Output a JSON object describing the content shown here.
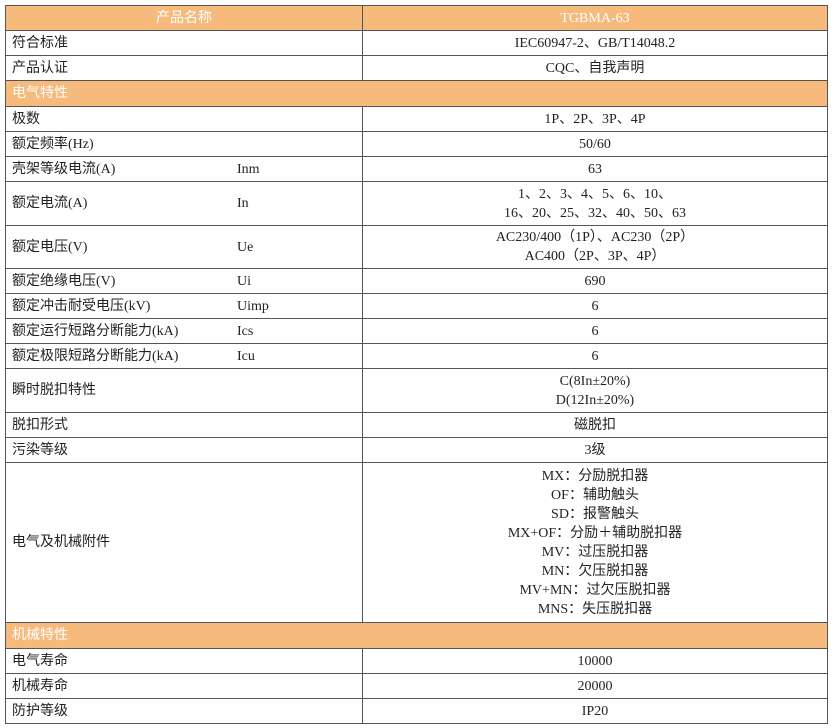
{
  "header": {
    "name_label": "产品名称",
    "model": "TGBMA-63"
  },
  "colors": {
    "section_bg": "#F5BA7C"
  },
  "rows_top": [
    {
      "label": "符合标准",
      "value": [
        "IEC60947-2、GB/T14048.2"
      ]
    },
    {
      "label": "产品认证",
      "value": [
        "CQC、自我声明"
      ]
    }
  ],
  "section_electrical": "电气特性",
  "rows_elec": [
    {
      "label": "极数",
      "symbol": "",
      "value": [
        "1P、2P、3P、4P"
      ]
    },
    {
      "label": "额定频率(Hz)",
      "symbol": "",
      "value": [
        "50/60"
      ]
    },
    {
      "label": "壳架等级电流(A)",
      "symbol": "Inm",
      "value": [
        "63"
      ]
    },
    {
      "label": "额定电流(A)",
      "symbol": "In",
      "value": [
        "1、2、3、4、5、6、10、",
        "16、20、25、32、40、50、63"
      ]
    },
    {
      "label": "额定电压(V)",
      "symbol": "Ue",
      "value": [
        "AC230/400（1P）、AC230（2P）",
        "AC400（2P、3P、4P）"
      ]
    },
    {
      "label": "额定绝缘电压(V)",
      "symbol": "Ui",
      "value": [
        "690"
      ]
    },
    {
      "label": "额定冲击耐受电压(kV)",
      "symbol": "Uimp",
      "value": [
        "6"
      ]
    },
    {
      "label": "额定运行短路分断能力(kA)",
      "symbol": "Ics",
      "value": [
        "6"
      ]
    },
    {
      "label": "额定极限短路分断能力(kA)",
      "symbol": "Icu",
      "value": [
        "6"
      ]
    },
    {
      "label": "瞬时脱扣特性",
      "symbol": "",
      "value": [
        "C(8In±20%)",
        "D(12In±20%)"
      ]
    },
    {
      "label": "脱扣形式",
      "symbol": "",
      "value": [
        "磁脱扣"
      ]
    },
    {
      "label": "污染等级",
      "symbol": "",
      "value": [
        "3级"
      ]
    },
    {
      "label": "电气及机械附件",
      "symbol": "",
      "value": [
        "MX：分励脱扣器",
        "OF：辅助触头",
        "SD：报警触头",
        "MX+OF：分励＋辅助脱扣器",
        "MV：过压脱扣器",
        "MN：欠压脱扣器",
        "MV+MN：过欠压脱扣器",
        "MNS：失压脱扣器"
      ]
    }
  ],
  "section_mechanical": "机械特性",
  "rows_mech": [
    {
      "label": "电气寿命",
      "value": [
        "10000"
      ]
    },
    {
      "label": "机械寿命",
      "value": [
        "20000"
      ]
    },
    {
      "label": "防护等级",
      "value": [
        "IP20"
      ]
    }
  ]
}
